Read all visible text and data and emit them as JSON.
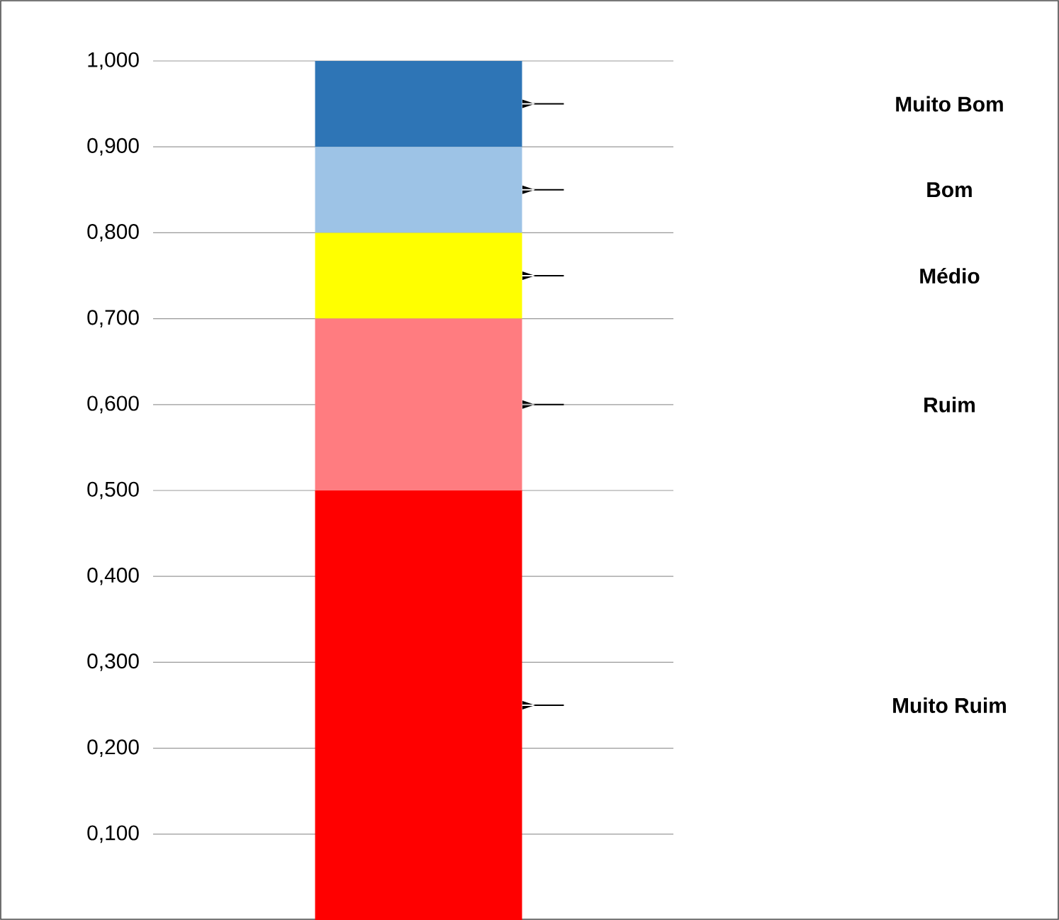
{
  "chart_data": {
    "type": "bar",
    "stacked": true,
    "categories": [
      null
    ],
    "series": [
      {
        "name": "Muito Ruim",
        "color": "#ff0000",
        "values": [
          0.5
        ]
      },
      {
        "name": "Ruim",
        "color": "#ff7c80",
        "values": [
          0.2
        ]
      },
      {
        "name": "Médio",
        "color": "#ffff00",
        "values": [
          0.1
        ]
      },
      {
        "name": "Bom",
        "color": "#9dc3e6",
        "values": [
          0.1
        ]
      },
      {
        "name": "Muito Bom",
        "color": "#2e75b6",
        "values": [
          0.1
        ]
      }
    ],
    "ylim": [
      0,
      1
    ],
    "yticks": [
      {
        "value": 0.1,
        "label": "0,100"
      },
      {
        "value": 0.2,
        "label": "0,200"
      },
      {
        "value": 0.3,
        "label": "0,300"
      },
      {
        "value": 0.4,
        "label": "0,400"
      },
      {
        "value": 0.5,
        "label": "0,500"
      },
      {
        "value": 0.6,
        "label": "0,600"
      },
      {
        "value": 0.7,
        "label": "0,700"
      },
      {
        "value": 0.8,
        "label": "0,800"
      },
      {
        "value": 0.9,
        "label": "0,900"
      },
      {
        "value": 1,
        "label": "1,000"
      }
    ],
    "grid": "y"
  }
}
